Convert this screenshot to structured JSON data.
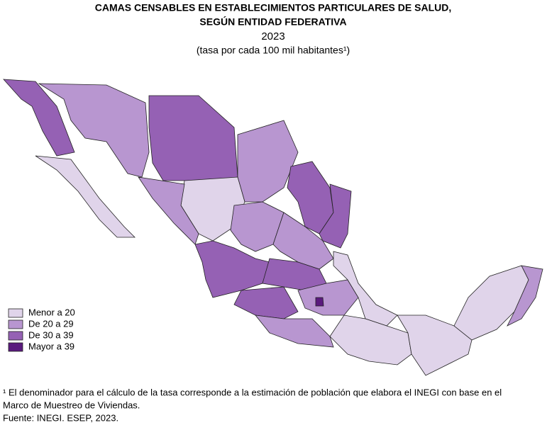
{
  "header": {
    "title_line1": "CAMAS CENSABLES EN ESTABLECIMIENTOS PARTICULARES DE SALUD,",
    "title_line2": "SEGÚN ENTIDAD FEDERATIVA",
    "year": "2023",
    "subtitle": "(tasa por cada 100 mil habitantes¹)"
  },
  "legend": [
    {
      "label": "Menor a 20",
      "color": "#e0d4ea"
    },
    {
      "label": "De 20 a 29",
      "color": "#b896d0"
    },
    {
      "label": "De 30 a 39",
      "color": "#9561b4"
    },
    {
      "label": "Mayor a 39",
      "color": "#5a1a7e"
    }
  ],
  "footnotes": {
    "note": "¹ El denominador para el cálculo de la tasa corresponde a la estimación de población que elabora el INEGI con base en el",
    "note_cont": "Marco de Muestreo de Viviendas.",
    "source": "Fuente: INEGI. ESEP, 2023."
  }
}
